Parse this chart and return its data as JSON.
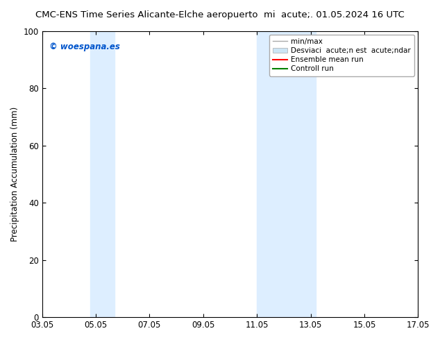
{
  "title_left": "CMC-ENS Time Series Alicante-Elche aeropuerto",
  "title_right": "mi  acute;. 01.05.2024 16 UTC",
  "ylabel": "Precipitation Accumulation (mm)",
  "xlabel": "",
  "ylim": [
    0,
    100
  ],
  "yticks": [
    0,
    20,
    40,
    60,
    80,
    100
  ],
  "xticks_labels": [
    "03.05",
    "05.05",
    "07.05",
    "09.05",
    "11.05",
    "13.05",
    "15.05",
    "17.05"
  ],
  "xticks_values": [
    0,
    2,
    4,
    6,
    8,
    10,
    12,
    14
  ],
  "background_color": "#ffffff",
  "plot_bg_color": "#ffffff",
  "shaded_regions": [
    {
      "x_start": 1.8,
      "x_end": 2.7,
      "color": "#ddeeff"
    },
    {
      "x_start": 8.0,
      "x_end": 10.2,
      "color": "#ddeeff"
    }
  ],
  "legend_label_minmax": "min/max",
  "legend_label_desv": "Desviaci  acute;n est  acute;ndar",
  "legend_label_ensemble": "Ensemble mean run",
  "legend_label_control": "Controll run",
  "legend_color_minmax": "#aaaaaa",
  "legend_color_desv": "#cce5f5",
  "legend_color_ensemble": "#ff0000",
  "legend_color_control": "#008000",
  "watermark_text": "© woespana.es",
  "watermark_color": "#0055cc",
  "border_color": "#000000",
  "tick_color": "#000000",
  "font_size": 8.5,
  "title_font_size": 9.5,
  "legend_font_size": 7.5
}
